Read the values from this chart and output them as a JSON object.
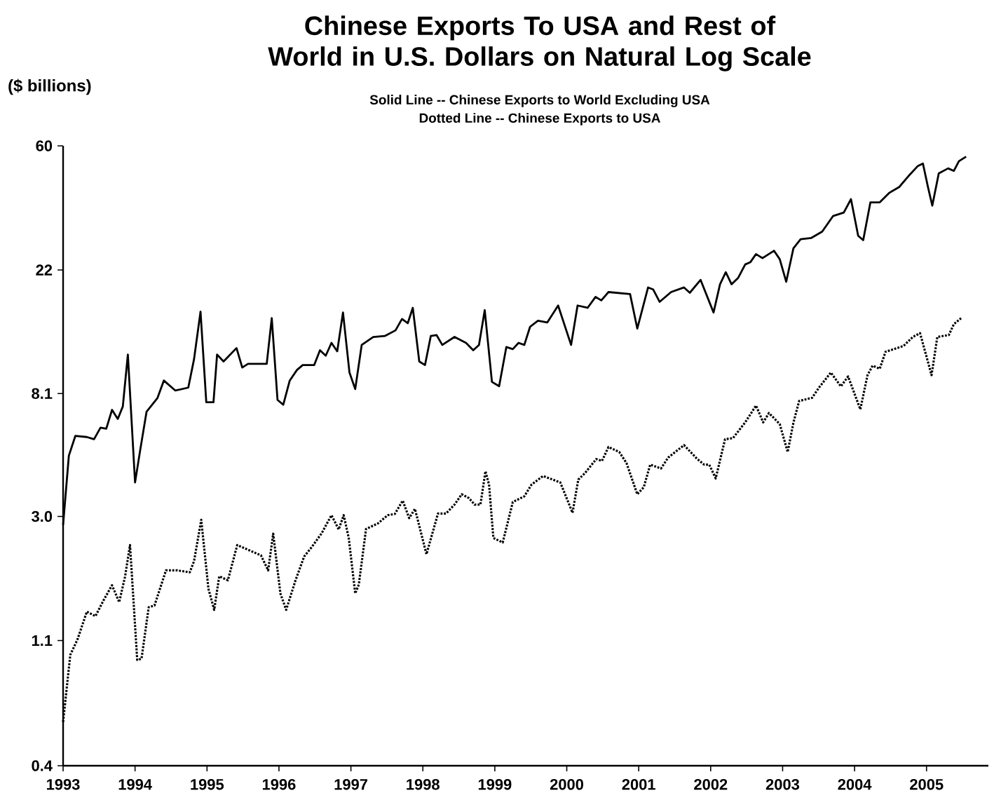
{
  "chart_data": {
    "type": "line",
    "title": "Chinese Exports To USA and Rest of World in U.S. Dollars on Natural Log Scale",
    "subtitle": "Solid Line -- Chinese Exports to World Excluding USA",
    "annotations": [
      "Dotted Line -- Chinese Exports to USA"
    ],
    "ylabel": "($ billions)",
    "log": "y",
    "marker": "none",
    "xlim": [
      1993,
      2005.86
    ],
    "xticks": [
      1993,
      1994,
      1995,
      1996,
      1997,
      1998,
      1999,
      2000,
      2001,
      2002,
      2003,
      2004,
      2005
    ],
    "ylim": [
      0.4,
      60
    ],
    "yticks": [
      0.4,
      1.1,
      {
        "value": 3,
        "label": "3.0"
      },
      8.1,
      22,
      60
    ],
    "series": [
      {
        "color": "#000000",
        "line_style": "solid",
        "x": [
          1993.0,
          1993.08,
          1993.17,
          1993.33,
          1993.43,
          1993.52,
          1993.6,
          1993.68,
          1993.76,
          1993.83,
          1993.9,
          1994.0,
          1994.07,
          1994.16,
          1994.31,
          1994.4,
          1994.56,
          1994.74,
          1994.82,
          1994.91,
          1994.99,
          1995.09,
          1995.14,
          1995.23,
          1995.41,
          1995.49,
          1995.57,
          1995.83,
          1995.9,
          1995.98,
          1996.06,
          1996.15,
          1996.25,
          1996.33,
          1996.49,
          1996.57,
          1996.65,
          1996.73,
          1996.81,
          1996.89,
          1996.98,
          1997.06,
          1997.15,
          1997.31,
          1997.47,
          1997.62,
          1997.71,
          1997.79,
          1997.86,
          1997.95,
          1998.03,
          1998.11,
          1998.19,
          1998.27,
          1998.44,
          1998.6,
          1998.7,
          1998.78,
          1998.86,
          1998.96,
          1999.06,
          1999.16,
          1999.25,
          1999.33,
          1999.41,
          1999.49,
          1999.6,
          1999.73,
          1999.88,
          2000.06,
          2000.15,
          2000.29,
          2000.4,
          2000.48,
          2000.58,
          2000.88,
          2000.98,
          2001.13,
          2001.2,
          2001.29,
          2001.45,
          2001.63,
          2001.71,
          2001.86,
          2002.04,
          2002.13,
          2002.21,
          2002.29,
          2002.38,
          2002.48,
          2002.55,
          2002.63,
          2002.72,
          2002.88,
          2002.96,
          2003.05,
          2003.15,
          2003.25,
          2003.4,
          2003.55,
          2003.7,
          2003.85,
          2003.95,
          2004.05,
          2004.12,
          2004.22,
          2004.35,
          2004.48,
          2004.62,
          2004.75,
          2004.88,
          2004.95,
          2005.02,
          2005.08,
          2005.17,
          2005.3,
          2005.38,
          2005.45,
          2005.55
        ],
        "values": [
          2.8,
          4.9,
          5.75,
          5.7,
          5.6,
          6.15,
          6.1,
          7.1,
          6.6,
          7.3,
          11.1,
          3.95,
          5.1,
          7.0,
          7.8,
          9.0,
          8.3,
          8.5,
          10.7,
          15.7,
          7.55,
          7.55,
          11.1,
          10.5,
          11.7,
          10.0,
          10.3,
          10.3,
          14.9,
          7.7,
          7.4,
          9.0,
          9.8,
          10.2,
          10.2,
          11.5,
          11.0,
          12.2,
          11.4,
          15.6,
          9.6,
          8.4,
          12.0,
          12.8,
          12.9,
          13.5,
          14.8,
          14.3,
          16.2,
          10.5,
          10.2,
          12.9,
          13.0,
          12.0,
          12.8,
          12.2,
          11.5,
          12.0,
          15.9,
          8.9,
          8.6,
          11.8,
          11.6,
          12.2,
          12.0,
          13.9,
          14.6,
          14.4,
          16.5,
          12.0,
          16.5,
          16.2,
          17.7,
          17.2,
          18.4,
          18.1,
          13.7,
          19.1,
          18.8,
          17.0,
          18.4,
          19.1,
          18.3,
          20.3,
          15.6,
          19.6,
          21.6,
          19.6,
          20.6,
          23.0,
          23.4,
          25.0,
          24.2,
          25.7,
          24.0,
          20.0,
          26.2,
          28.2,
          28.5,
          30,
          34,
          35,
          39,
          29,
          28,
          38,
          38,
          41,
          43,
          47,
          51,
          52,
          43,
          37,
          48,
          50,
          49,
          53,
          55
        ]
      },
      {
        "color": "#000000",
        "line_style": "dotted",
        "x": [
          1993.0,
          1993.1,
          1993.2,
          1993.33,
          1993.45,
          1993.56,
          1993.68,
          1993.78,
          1993.86,
          1993.93,
          1994.03,
          1994.09,
          1994.19,
          1994.27,
          1994.43,
          1994.59,
          1994.76,
          1994.82,
          1994.92,
          1995.02,
          1995.1,
          1995.17,
          1995.29,
          1995.42,
          1995.75,
          1995.85,
          1995.92,
          1996.02,
          1996.1,
          1996.23,
          1996.35,
          1996.46,
          1996.59,
          1996.73,
          1996.83,
          1996.9,
          1996.97,
          1997.06,
          1997.11,
          1997.21,
          1997.38,
          1997.51,
          1997.61,
          1997.72,
          1997.81,
          1997.89,
          1998.05,
          1998.21,
          1998.32,
          1998.44,
          1998.54,
          1998.64,
          1998.72,
          1998.8,
          1998.87,
          1998.92,
          1998.98,
          1999.11,
          1999.25,
          1999.41,
          1999.51,
          1999.67,
          1999.91,
          2000.08,
          2000.16,
          2000.25,
          2000.41,
          2000.49,
          2000.58,
          2000.73,
          2000.83,
          2000.98,
          2001.07,
          2001.16,
          2001.31,
          2001.41,
          2001.63,
          2001.81,
          2001.91,
          2001.98,
          2002.07,
          2002.2,
          2002.31,
          2002.48,
          2002.63,
          2002.73,
          2002.81,
          2002.96,
          2003.07,
          2003.15,
          2003.23,
          2003.41,
          2003.51,
          2003.67,
          2003.81,
          2003.91,
          2004.08,
          2004.18,
          2004.25,
          2004.35,
          2004.43,
          2004.68,
          2004.81,
          2004.91,
          2005.07,
          2005.15,
          2005.31,
          2005.38,
          2005.48
        ],
        "values": [
          0.57,
          0.98,
          1.11,
          1.39,
          1.34,
          1.52,
          1.72,
          1.5,
          1.84,
          2.38,
          0.94,
          0.95,
          1.44,
          1.46,
          1.94,
          1.94,
          1.91,
          2.09,
          2.92,
          1.67,
          1.41,
          1.85,
          1.79,
          2.38,
          2.19,
          1.94,
          2.61,
          1.61,
          1.41,
          1.79,
          2.17,
          2.35,
          2.61,
          3.03,
          2.7,
          3.03,
          2.52,
          1.61,
          1.73,
          2.71,
          2.84,
          3.03,
          3.06,
          3.41,
          2.96,
          3.19,
          2.21,
          3.07,
          3.07,
          3.3,
          3.59,
          3.48,
          3.3,
          3.3,
          4.32,
          3.88,
          2.52,
          2.43,
          3.37,
          3.53,
          3.88,
          4.16,
          3.95,
          3.09,
          4.04,
          4.25,
          4.77,
          4.7,
          5.26,
          5.05,
          4.62,
          3.59,
          3.8,
          4.56,
          4.42,
          4.83,
          5.34,
          4.78,
          4.56,
          4.56,
          4.08,
          5.6,
          5.65,
          6.42,
          7.35,
          6.42,
          6.92,
          6.33,
          5.05,
          6.4,
          7.63,
          7.83,
          8.53,
          9.6,
          8.58,
          9.3,
          7.13,
          9.4,
          10.15,
          9.9,
          11.35,
          11.9,
          12.8,
          13.2,
          9.4,
          12.8,
          13.0,
          14.2,
          14.9
        ]
      }
    ]
  }
}
